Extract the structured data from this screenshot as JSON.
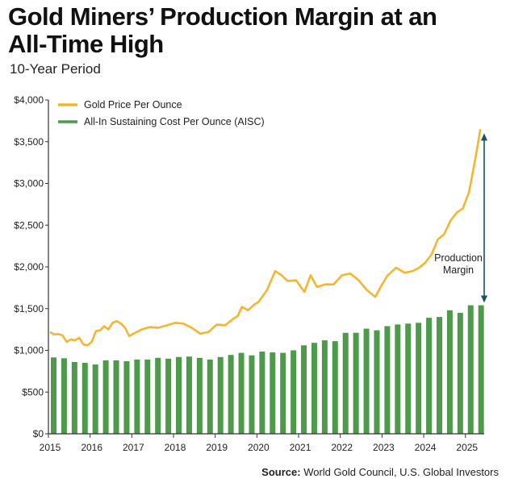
{
  "title_line1": "Gold Miners’ Production Margin at an",
  "title_line2": "All-Time High",
  "subtitle": "10-Year Period",
  "source_label": "Source:",
  "source_text": "World Gold Council, U.S. Global Investors",
  "annotation": [
    "Production",
    "Margin"
  ],
  "colors": {
    "gold": "#f5b52e",
    "green": "#4e9a4b",
    "arrow": "#1d4f66",
    "axis": "#333333"
  },
  "chart_data": {
    "type": "bar+line",
    "ylim": [
      0,
      4000
    ],
    "yticks": [
      0,
      500,
      1000,
      1500,
      2000,
      2500,
      3000,
      3500,
      4000
    ],
    "ytick_labels": [
      "$0",
      "$500",
      "$1,000",
      "$1,500",
      "$2,000",
      "$2,500",
      "$3,000",
      "$3,500",
      "$4,000"
    ],
    "xlim": [
      2015.0,
      2025.45
    ],
    "xticks": [
      2015,
      2016,
      2017,
      2018,
      2019,
      2020,
      2021,
      2022,
      2023,
      2024,
      2025
    ],
    "legend_position": "top-left",
    "series": [
      {
        "name": "Gold Price Per Ounce",
        "kind": "line",
        "x": [
          2015.0,
          2015.1,
          2015.2,
          2015.3,
          2015.4,
          2015.5,
          2015.6,
          2015.7,
          2015.8,
          2015.9,
          2016.0,
          2016.1,
          2016.2,
          2016.3,
          2016.4,
          2016.5,
          2016.6,
          2016.7,
          2016.8,
          2016.9,
          2017.0,
          2017.2,
          2017.4,
          2017.6,
          2017.8,
          2018.0,
          2018.2,
          2018.4,
          2018.6,
          2018.8,
          2019.0,
          2019.2,
          2019.4,
          2019.5,
          2019.6,
          2019.75,
          2019.9,
          2020.0,
          2020.2,
          2020.4,
          2020.55,
          2020.7,
          2020.9,
          2021.1,
          2021.25,
          2021.4,
          2021.6,
          2021.8,
          2022.0,
          2022.2,
          2022.4,
          2022.6,
          2022.8,
          2022.95,
          2023.1,
          2023.3,
          2023.5,
          2023.7,
          2023.85,
          2024.0,
          2024.15,
          2024.3,
          2024.45,
          2024.6,
          2024.75,
          2024.9,
          2025.05,
          2025.2,
          2025.32
        ],
        "values": [
          1220,
          1190,
          1195,
          1180,
          1100,
          1130,
          1120,
          1150,
          1070,
          1060,
          1100,
          1230,
          1240,
          1290,
          1250,
          1330,
          1350,
          1320,
          1270,
          1170,
          1200,
          1250,
          1280,
          1270,
          1300,
          1330,
          1320,
          1270,
          1200,
          1220,
          1310,
          1300,
          1380,
          1410,
          1520,
          1480,
          1550,
          1580,
          1720,
          1950,
          1900,
          1830,
          1840,
          1700,
          1900,
          1760,
          1790,
          1790,
          1900,
          1920,
          1840,
          1720,
          1640,
          1780,
          1900,
          1990,
          1930,
          1950,
          1990,
          2050,
          2150,
          2330,
          2390,
          2550,
          2650,
          2700,
          2900,
          3300,
          3650
        ]
      },
      {
        "name": "All-In Sustaining Cost Per Ounce (AISC)",
        "kind": "bar",
        "x": [
          2015.0,
          2015.25,
          2015.5,
          2015.75,
          2016.0,
          2016.25,
          2016.5,
          2016.75,
          2017.0,
          2017.25,
          2017.5,
          2017.75,
          2018.0,
          2018.25,
          2018.5,
          2018.75,
          2019.0,
          2019.25,
          2019.5,
          2019.75,
          2020.0,
          2020.25,
          2020.5,
          2020.75,
          2021.0,
          2021.25,
          2021.5,
          2021.75,
          2022.0,
          2022.25,
          2022.5,
          2022.75,
          2023.0,
          2023.25,
          2023.5,
          2023.75,
          2024.0,
          2024.25,
          2024.5,
          2024.75,
          2025.0,
          2025.25
        ],
        "values": [
          915,
          905,
          860,
          850,
          830,
          880,
          880,
          870,
          890,
          890,
          910,
          900,
          920,
          925,
          910,
          890,
          920,
          945,
          970,
          940,
          985,
          975,
          970,
          1000,
          1060,
          1090,
          1120,
          1110,
          1210,
          1210,
          1260,
          1240,
          1290,
          1310,
          1320,
          1330,
          1390,
          1400,
          1480,
          1450,
          1540,
          1540
        ]
      }
    ]
  }
}
